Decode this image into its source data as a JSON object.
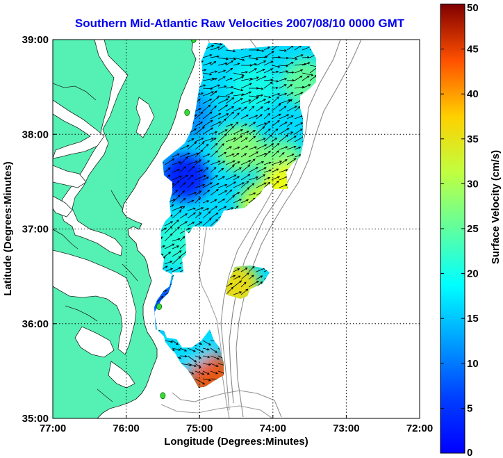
{
  "chart_data": {
    "type": "heatmap",
    "title": "Southern Mid-Atlantic Raw Velocities 2007/08/10 0000 GMT",
    "xlabel": "Longitude (Degrees:Minutes)",
    "ylabel": "Latitude (Degrees:Minutes)",
    "colorbar_label": "Surface Velocity (cm/s)",
    "xlim": [
      -77,
      -72
    ],
    "ylim": [
      35,
      39
    ],
    "x_ticks": [
      {
        "value": -77,
        "label": "77:00"
      },
      {
        "value": -76,
        "label": "76:00"
      },
      {
        "value": -75,
        "label": "75:00"
      },
      {
        "value": -74,
        "label": "74:00"
      },
      {
        "value": -73,
        "label": "73:00"
      },
      {
        "value": -72,
        "label": "72:00"
      }
    ],
    "y_ticks": [
      {
        "value": 35,
        "label": "35:00"
      },
      {
        "value": 36,
        "label": "36:00"
      },
      {
        "value": 37,
        "label": "37:00"
      },
      {
        "value": 38,
        "label": "38:00"
      },
      {
        "value": 39,
        "label": "39:00"
      }
    ],
    "colorbar_range": [
      0,
      50
    ],
    "colorbar_ticks": [
      {
        "value": 0,
        "label": "0"
      },
      {
        "value": 5,
        "label": "5"
      },
      {
        "value": 10,
        "label": "10"
      },
      {
        "value": 15,
        "label": "15"
      },
      {
        "value": 20,
        "label": "20"
      },
      {
        "value": 25,
        "label": "25"
      },
      {
        "value": 30,
        "label": "30"
      },
      {
        "value": 35,
        "label": "35"
      },
      {
        "value": 40,
        "label": "40"
      },
      {
        "value": 45,
        "label": "45"
      },
      {
        "value": 50,
        "label": "50"
      }
    ],
    "colormap": "jet",
    "grid": true,
    "land_color": "#55f0b4",
    "shelf_contour_color": "#8a8a8a",
    "site_marker_color": "#33dd33",
    "vector_color": "#000000",
    "velocity_field": [
      {
        "lon": -74.15,
        "lat": 37.25,
        "speed": 29
      },
      {
        "lon": -73.9,
        "lat": 37.7,
        "speed": 25
      },
      {
        "lon": -74.45,
        "lat": 37.85,
        "speed": 26
      },
      {
        "lon": -74.25,
        "lat": 38.5,
        "speed": 20
      },
      {
        "lon": -75.15,
        "lat": 38.2,
        "speed": 13
      },
      {
        "lon": -73.8,
        "lat": 37.45,
        "speed": 31
      },
      {
        "lon": -73.55,
        "lat": 38.55,
        "speed": 24
      },
      {
        "lon": -75.2,
        "lat": 37.55,
        "speed": 7
      },
      {
        "lon": -75.3,
        "lat": 36.85,
        "speed": 21
      },
      {
        "lon": -74.5,
        "lat": 36.4,
        "speed": 33
      },
      {
        "lon": -75.45,
        "lat": 36.2,
        "speed": 10
      },
      {
        "lon": -74.85,
        "lat": 35.45,
        "speed": 40
      },
      {
        "lon": -75.15,
        "lat": 35.8,
        "speed": 17
      }
    ],
    "radar_sites": [
      {
        "lon": -75.08,
        "lat": 39.0
      },
      {
        "lon": -75.17,
        "lat": 38.23
      },
      {
        "lon": -75.55,
        "lat": 36.18
      },
      {
        "lon": -75.5,
        "lat": 35.24
      }
    ]
  }
}
